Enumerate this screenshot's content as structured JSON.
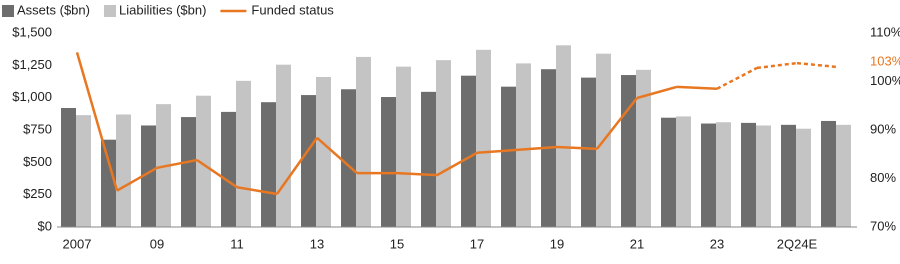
{
  "chart_data": {
    "type": "bar_line",
    "categories": [
      "2007",
      null,
      "09",
      null,
      "11",
      null,
      "13",
      null,
      "15",
      null,
      "17",
      null,
      "19",
      null,
      "21",
      null,
      "23",
      null,
      "2Q24E",
      null
    ],
    "series": [
      {
        "name": "Assets ($bn)",
        "color": "#6d6d6d",
        "values": [
          920,
          675,
          785,
          850,
          890,
          965,
          1020,
          1065,
          1005,
          1045,
          1170,
          1085,
          1220,
          1155,
          1175,
          845,
          800,
          805,
          790,
          820
        ]
      },
      {
        "name": "Liabilities ($bn)",
        "color": "#c4c4c4",
        "values": [
          865,
          870,
          950,
          1015,
          1130,
          1255,
          1160,
          1315,
          1240,
          1290,
          1370,
          1265,
          1405,
          1340,
          1215,
          855,
          810,
          785,
          760,
          790
        ]
      },
      {
        "name": "Funded status",
        "color": "#e87722",
        "axis": "y2",
        "values": [
          106,
          77.5,
          82.2,
          83.8,
          78.2,
          76.8,
          88.4,
          81.1,
          81.1,
          80.7,
          85.3,
          85.9,
          86.5,
          86.1,
          96.6,
          98.9,
          98.5,
          102.8,
          103.8,
          103
        ],
        "styles": [
          "solid",
          "solid",
          "solid",
          "solid",
          "solid",
          "solid",
          "solid",
          "solid",
          "solid",
          "solid",
          "solid",
          "solid",
          "solid",
          "solid",
          "solid",
          "solid",
          "solid",
          "dashed",
          "dashed",
          "dashed"
        ]
      }
    ],
    "ylim": [
      0,
      1500
    ],
    "yticks": [
      {
        "value": 0,
        "label": "$0"
      },
      {
        "value": 250,
        "label": "$250"
      },
      {
        "value": 500,
        "label": "$500"
      },
      {
        "value": 750,
        "label": "$750"
      },
      {
        "value": 1000,
        "label": "$1,000"
      },
      {
        "value": 1250,
        "label": "$1,250"
      },
      {
        "value": 1500,
        "label": "$1,500"
      }
    ],
    "y2lim": [
      70,
      110
    ],
    "y2ticks": [
      {
        "value": 70,
        "label": "70%"
      },
      {
        "value": 80,
        "label": "80%"
      },
      {
        "value": 90,
        "label": "90%"
      },
      {
        "value": 100,
        "label": "100%"
      },
      {
        "value": 110,
        "label": "110%"
      }
    ],
    "annotation": "103%",
    "legend": "top-left"
  }
}
